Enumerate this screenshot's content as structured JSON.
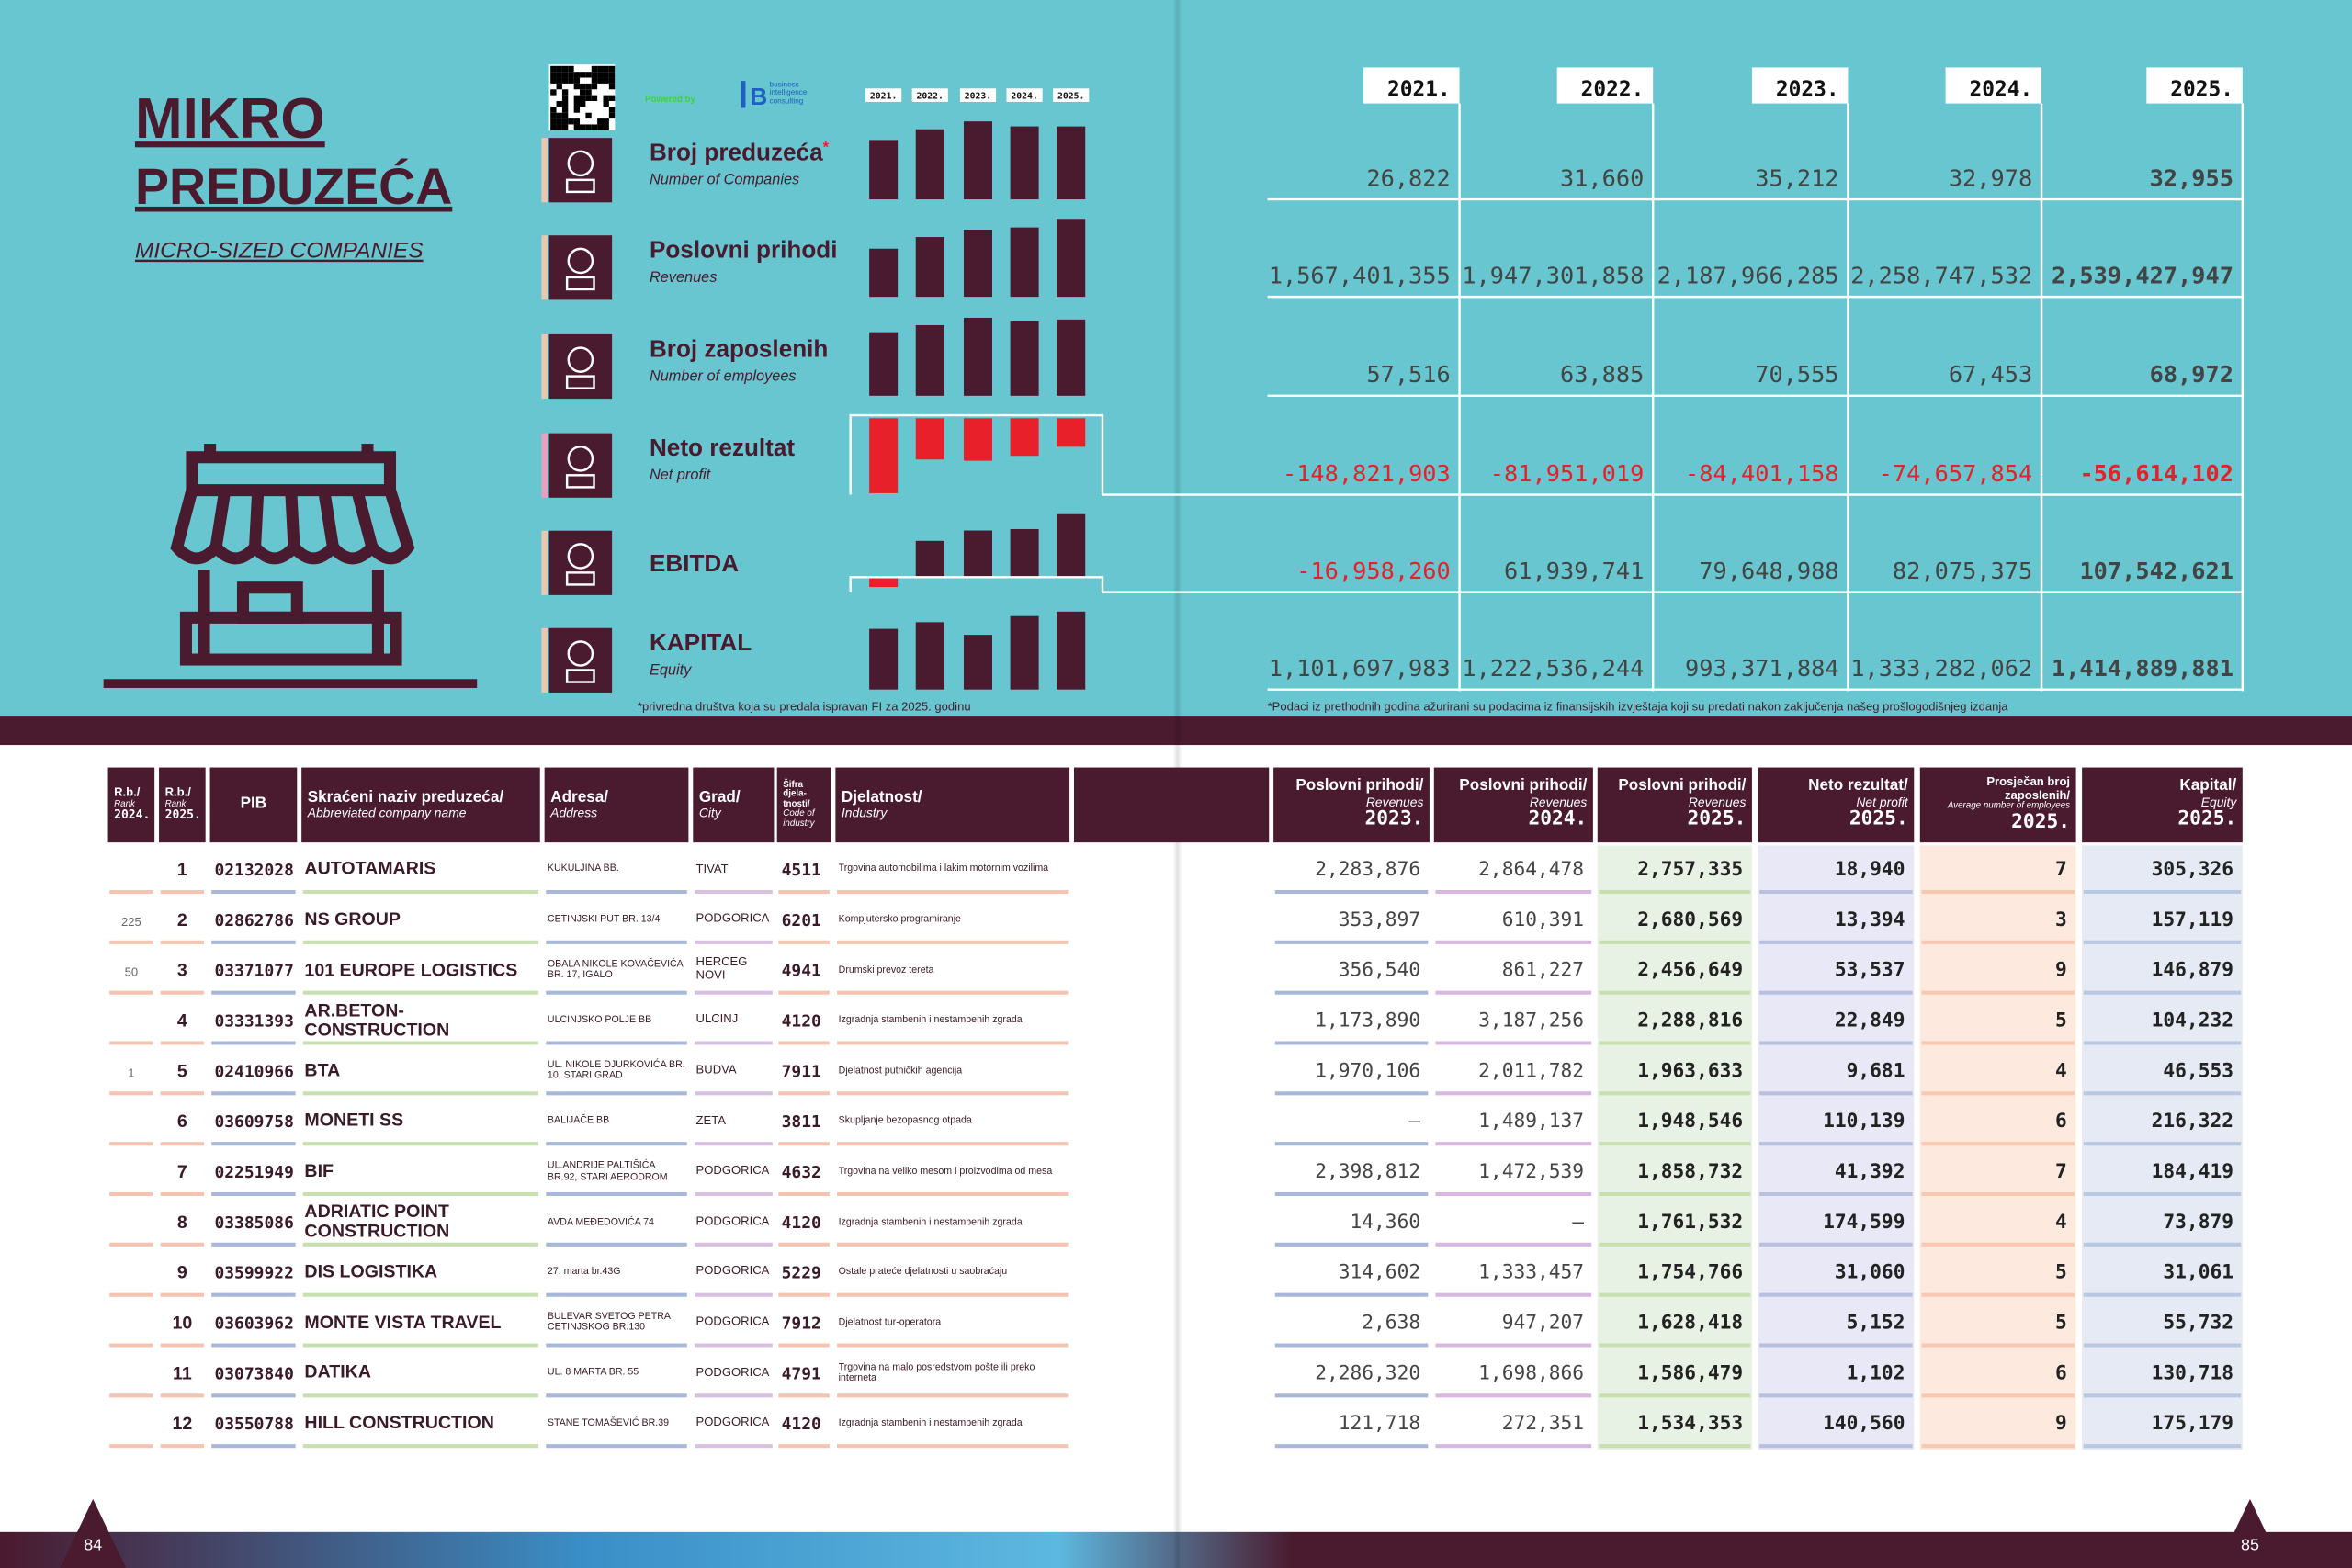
{
  "left_page": {
    "title_line1": "MIKRO",
    "title_line2": "PREDUZEĆA",
    "subtitle": "MICRO-SIZED COMPANIES",
    "page_number": "84"
  },
  "right_page": {
    "page_number": "85"
  },
  "branding": {
    "powered_by": "Powered by",
    "logo_text": "business intelligence consulting"
  },
  "summary": {
    "years": [
      "2021.",
      "2022.",
      "2023.",
      "2024.",
      "2025."
    ],
    "rows": [
      {
        "title": "Broj preduzeća",
        "mark": "*",
        "subtitle": "Number of Companies",
        "values": [
          "26,822",
          "31,660",
          "35,212",
          "32,978",
          "32,955"
        ]
      },
      {
        "title": "Poslovni  prihodi",
        "subtitle": "Revenues",
        "values": [
          "1,567,401,355",
          "1,947,301,858",
          "2,187,966,285",
          "2,258,747,532",
          "2,539,427,947"
        ]
      },
      {
        "title": "Broj zaposlenih",
        "subtitle": "Number of employees",
        "values": [
          "57,516",
          "63,885",
          "70,555",
          "67,453",
          "68,972"
        ]
      },
      {
        "title": "Neto rezultat",
        "subtitle": "Net profit",
        "values": [
          "-148,821,903",
          "-81,951,019",
          "-84,401,158",
          "-74,657,854",
          "-56,614,102"
        ]
      },
      {
        "title": "EBITDA",
        "values": [
          "-16,958,260",
          "61,939,741",
          "79,648,988",
          "82,075,375",
          "107,542,621"
        ]
      },
      {
        "title": "KAPITAL",
        "subtitle": "Equity",
        "values": [
          "1,101,697,983",
          "1,222,536,244",
          "993,371,884",
          "1,333,282,062",
          "1,414,889,881"
        ]
      }
    ],
    "footnote_left": "*privredna društva koja su predala ispravan FI za 2025. godinu",
    "footnote_right": "*Podaci iz prethodnih godina ažurirani su podacima iz finansijskih izvještaja koji su predati nakon zaključenja našeg prošlogodišnjeg izdanja"
  },
  "table": {
    "headers": [
      {
        "title": "R.b./",
        "sub": "Rank",
        "year": "2024."
      },
      {
        "title": "R.b./",
        "sub": "Rank",
        "year": "2025."
      },
      {
        "title": "PIB"
      },
      {
        "title": "Skraćeni naziv preduzeća/",
        "sub": "Abbreviated company name"
      },
      {
        "title": "Adresa/",
        "sub": "Address"
      },
      {
        "title": "Grad/",
        "sub": "City"
      },
      {
        "title": "Šifra djela-tnosti/",
        "sub": "Code of industry"
      },
      {
        "title": "Djelatnost/",
        "sub": "Industry"
      },
      {
        "title": "Poslovni prihodi/",
        "sub": "Revenues",
        "year": "2023."
      },
      {
        "title": "Poslovni prihodi/",
        "sub": "Revenues",
        "year": "2024."
      },
      {
        "title": "Poslovni prihodi/",
        "sub": "Revenues",
        "year": "2025."
      },
      {
        "title": "Neto rezultat/",
        "sub": "Net profit",
        "year": "2025."
      },
      {
        "title": "Prosječan broj zaposlenih/",
        "sub": "Average number of employees",
        "year": "2025."
      },
      {
        "title": "Kapital/",
        "sub": "Equity",
        "year": "2025."
      }
    ],
    "rows": [
      [
        null,
        "1",
        "02132028",
        "AUTOTAMARIS",
        "KUKULJINA BB.",
        "TIVAT",
        "4511",
        "Trgovina automobilima i lakim motornim vozilima",
        "2,283,876",
        "2,864,478",
        "2,757,335",
        "18,940",
        "7",
        "305,326"
      ],
      [
        "225",
        "2",
        "02862786",
        "NS GROUP",
        "CETINJSKI PUT BR. 13/4",
        "PODGORICA",
        "6201",
        "Kompjutersko programiranje",
        "353,897",
        "610,391",
        "2,680,569",
        "13,394",
        "3",
        "157,119"
      ],
      [
        "50",
        "3",
        "03371077",
        "101 EUROPE LOGISTICS",
        "OBALA NIKOLE KOVAČEVIĆA BR. 17, IGALO",
        "HERCEG NOVI",
        "4941",
        "Drumski prevoz tereta",
        "356,540",
        "861,227",
        "2,456,649",
        "53,537",
        "9",
        "146,879"
      ],
      [
        null,
        "4",
        "03331393",
        "AR.BETON-CONSTRUCTION",
        "ULCINJSKO POLJE BB",
        "ULCINJ",
        "4120",
        "Izgradnja stambenih i nestambenih zgrada",
        "1,173,890",
        "3,187,256",
        "2,288,816",
        "22,849",
        "5",
        "104,232"
      ],
      [
        "1",
        "5",
        "02410966",
        "BTA",
        "UL. NIKOLE DJURKOVIĆA BR. 10, STARI GRAD",
        "BUDVA",
        "7911",
        "Djelatnost putničkih agencija",
        "1,970,106",
        "2,011,782",
        "1,963,633",
        "9,681",
        "4",
        "46,553"
      ],
      [
        null,
        "6",
        "03609758",
        "MONETI SS",
        "BALIJAČE BB",
        "ZETA",
        "3811",
        "Skupljanje bezopasnog otpada",
        "–",
        "1,489,137",
        "1,948,546",
        "110,139",
        "6",
        "216,322"
      ],
      [
        null,
        "7",
        "02251949",
        "BIF",
        "UL.ANDRIJE PALTIŠIĆA BR.92, STARI AERODROM",
        "PODGORICA",
        "4632",
        "Trgovina na veliko mesom i proizvodima od mesa",
        "2,398,812",
        "1,472,539",
        "1,858,732",
        "41,392",
        "7",
        "184,419"
      ],
      [
        null,
        "8",
        "03385086",
        "ADRIATIC POINT CONSTRUCTION",
        "AVDA MEĐEDOVIĆA 74",
        "PODGORICA",
        "4120",
        "Izgradnja stambenih i nestambenih zgrada",
        "14,360",
        "–",
        "1,761,532",
        "174,599",
        "4",
        "73,879"
      ],
      [
        null,
        "9",
        "03599922",
        "DIS LOGISTIKA",
        "27. marta br.43G",
        "PODGORICA",
        "5229",
        "Ostale prateće djelatnosti u saobraćaju",
        "314,602",
        "1,333,457",
        "1,754,766",
        "31,060",
        "5",
        "31,061"
      ],
      [
        null,
        "10",
        "03603962",
        "MONTE VISTA TRAVEL",
        "BULEVAR SVETOG PETRA CETINJSKOG BR.130",
        "PODGORICA",
        "7912",
        "Djelatnost tur-operatora",
        "2,638",
        "947,207",
        "1,628,418",
        "5,152",
        "5",
        "55,732"
      ],
      [
        null,
        "11",
        "03073840",
        "DATIKA",
        "UL. 8 MARTA BR. 55",
        "PODGORICA",
        "4791",
        "Trgovina na malo posredstvom pošte ili preko interneta",
        "2,286,320",
        "1,698,866",
        "1,586,479",
        "1,102",
        "6",
        "130,718"
      ],
      [
        null,
        "12",
        "03550788",
        "HILL CONSTRUCTION",
        "STANE TOMAŠEVIĆ BR.39",
        "PODGORICA",
        "4120",
        "Izgradnja stambenih i nestambenih zgrada",
        "121,718",
        "272,351",
        "1,534,353",
        "140,560",
        "9",
        "175,179"
      ]
    ]
  }
}
